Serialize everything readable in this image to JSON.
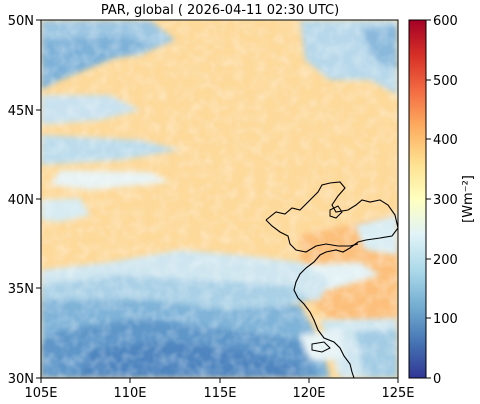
{
  "title": "PAR, global ( 2026-04-11 02:30 UTC)",
  "map": {
    "x_ticks": [
      "105E",
      "110E",
      "115E",
      "120E",
      "125E"
    ],
    "y_ticks": [
      "50N",
      "45N",
      "40N",
      "35N",
      "30N"
    ],
    "lon_range": [
      105,
      125
    ],
    "lat_range": [
      30,
      50
    ]
  },
  "colorbar": {
    "label": "[Wm⁻²]",
    "ticks": [
      "600",
      "500",
      "400",
      "300",
      "200",
      "100",
      "0"
    ],
    "range": [
      0,
      600
    ],
    "colormap": "RdYlBu_r"
  },
  "colors": {
    "low": "#313695",
    "mid_low": "#74add1",
    "mid": "#ffffbf",
    "mid_high": "#fdae61",
    "high": "#a50026",
    "background_field": "#fdd99a",
    "coast": "#000000"
  }
}
